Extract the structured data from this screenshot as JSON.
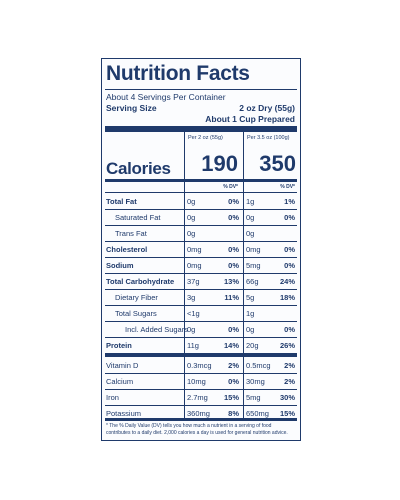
{
  "title": "Nutrition Facts",
  "servings_per_container": "About 4 Servings Per Container",
  "serving_size_label": "Serving Size",
  "serving_size_value_1": "2 oz Dry (55g)",
  "serving_size_value_2": "About 1 Cup Prepared",
  "col1_header": "Per 2 oz (55g)",
  "col2_header": "Per 3.5 oz (100g)",
  "calories_label": "Calories",
  "calories_1": "190",
  "calories_2": "350",
  "dv_header_1": "% DV*",
  "dv_header_2": "% DV*",
  "rows": [
    {
      "name": "Total Fat",
      "bold": true,
      "a1": "0g",
      "p1": "0%",
      "a2": "1g",
      "p2": "1%"
    },
    {
      "name": "Saturated Fat",
      "indent": 1,
      "a1": "0g",
      "p1": "0%",
      "a2": "0g",
      "p2": "0%"
    },
    {
      "name": "Trans Fat",
      "indent": 1,
      "a1": "0g",
      "p1": "",
      "a2": "0g",
      "p2": ""
    },
    {
      "name": "Cholesterol",
      "bold": true,
      "a1": "0mg",
      "p1": "0%",
      "a2": "0mg",
      "p2": "0%"
    },
    {
      "name": "Sodium",
      "bold": true,
      "a1": "0mg",
      "p1": "0%",
      "a2": "5mg",
      "p2": "0%"
    },
    {
      "name": "Total Carbohydrate",
      "bold": true,
      "a1": "37g",
      "p1": "13%",
      "a2": "66g",
      "p2": "24%"
    },
    {
      "name": "Dietary Fiber",
      "indent": 1,
      "a1": "3g",
      "p1": "11%",
      "a2": "5g",
      "p2": "18%"
    },
    {
      "name": "Total Sugars",
      "indent": 1,
      "a1": "<1g",
      "p1": "",
      "a2": "1g",
      "p2": ""
    },
    {
      "name": "Incl. Added Sugars",
      "indent": 2,
      "a1": "0g",
      "p1": "0%",
      "a2": "0g",
      "p2": "0%"
    },
    {
      "name": "Protein",
      "bold": true,
      "a1": "11g",
      "p1": "14%",
      "a2": "20g",
      "p2": "26%"
    },
    {
      "name": "Vitamin D",
      "a1": "0.3mcg",
      "p1": "2%",
      "a2": "0.5mcg",
      "p2": "2%"
    },
    {
      "name": "Calcium",
      "a1": "10mg",
      "p1": "0%",
      "a2": "30mg",
      "p2": "2%"
    },
    {
      "name": "Iron",
      "a1": "2.7mg",
      "p1": "15%",
      "a2": "5mg",
      "p2": "30%"
    },
    {
      "name": "Potassium",
      "a1": "360mg",
      "p1": "8%",
      "a2": "650mg",
      "p2": "15%"
    }
  ],
  "footnote": "* The % Daily Value (DV) tells you how much a nutrient in a serving of food contributes to a daily diet. 2,000 calories a day is used for general nutrition advice."
}
